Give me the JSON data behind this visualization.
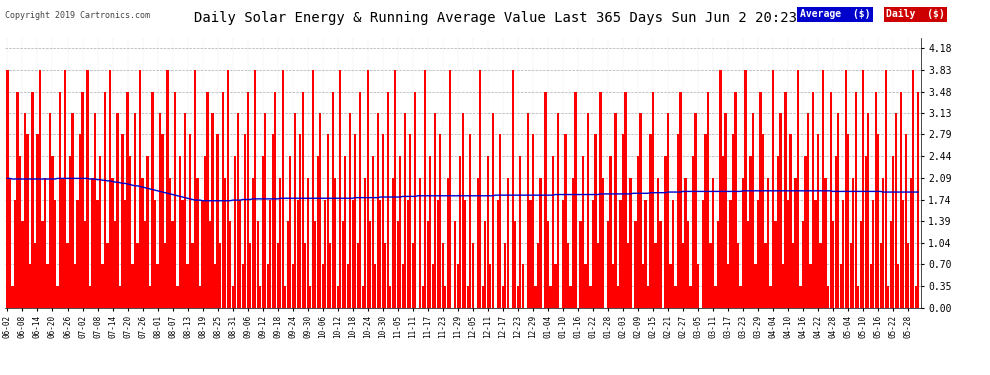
{
  "title": "Daily Solar Energy & Running Average Value Last 365 Days Sun Jun 2 20:23",
  "copyright": "Copyright 2019 Cartronics.com",
  "ylabel_right_ticks": [
    0.0,
    0.35,
    0.7,
    1.04,
    1.39,
    1.74,
    2.09,
    2.44,
    2.79,
    3.13,
    3.48,
    3.83,
    4.18
  ],
  "ylim": [
    0.0,
    4.35
  ],
  "bar_color": "#ff0000",
  "avg_color": "#0000cc",
  "bg_color": "#ffffff",
  "plot_bg_color": "#ffffff",
  "grid_color": "#999999",
  "title_color": "#000000",
  "title_fontsize": 11,
  "legend_avg_bg": "#0000cc",
  "legend_daily_bg": "#cc0000",
  "legend_text_color": "#ffffff",
  "num_bars": 365,
  "x_tick_labels": [
    "06-02",
    "06-08",
    "06-14",
    "06-20",
    "06-26",
    "07-02",
    "07-08",
    "07-14",
    "07-20",
    "07-26",
    "08-01",
    "08-07",
    "08-13",
    "08-19",
    "08-25",
    "08-31",
    "09-06",
    "09-12",
    "09-18",
    "09-24",
    "09-30",
    "10-06",
    "10-12",
    "10-18",
    "10-24",
    "10-30",
    "11-05",
    "11-11",
    "11-17",
    "11-23",
    "11-29",
    "12-05",
    "12-11",
    "12-17",
    "12-23",
    "12-29",
    "01-04",
    "01-10",
    "01-16",
    "01-22",
    "01-28",
    "02-03",
    "02-09",
    "02-15",
    "02-21",
    "02-27",
    "03-05",
    "03-11",
    "03-17",
    "03-23",
    "03-29",
    "04-04",
    "04-10",
    "04-16",
    "04-22",
    "04-28",
    "05-04",
    "05-10",
    "05-16",
    "05-22",
    "05-28"
  ],
  "avg_values": [
    2.08,
    2.08,
    2.07,
    2.07,
    2.07,
    2.07,
    2.07,
    2.07,
    2.07,
    2.07,
    2.07,
    2.07,
    2.07,
    2.07,
    2.07,
    2.07,
    2.07,
    2.07,
    2.07,
    2.07,
    2.08,
    2.08,
    2.08,
    2.08,
    2.08,
    2.08,
    2.08,
    2.08,
    2.08,
    2.08,
    2.08,
    2.08,
    2.08,
    2.07,
    2.07,
    2.07,
    2.06,
    2.06,
    2.05,
    2.05,
    2.04,
    2.04,
    2.03,
    2.02,
    2.02,
    2.01,
    2.0,
    2.0,
    1.99,
    1.98,
    1.97,
    1.96,
    1.96,
    1.95,
    1.94,
    1.93,
    1.92,
    1.91,
    1.9,
    1.89,
    1.88,
    1.87,
    1.86,
    1.85,
    1.84,
    1.83,
    1.82,
    1.81,
    1.8,
    1.79,
    1.78,
    1.77,
    1.76,
    1.75,
    1.74,
    1.73,
    1.73,
    1.73,
    1.72,
    1.72,
    1.72,
    1.72,
    1.72,
    1.72,
    1.72,
    1.72,
    1.72,
    1.72,
    1.72,
    1.72,
    1.73,
    1.73,
    1.73,
    1.73,
    1.74,
    1.74,
    1.74,
    1.74,
    1.75,
    1.75,
    1.75,
    1.75,
    1.75,
    1.75,
    1.75,
    1.75,
    1.75,
    1.75,
    1.75,
    1.76,
    1.76,
    1.76,
    1.76,
    1.76,
    1.76,
    1.76,
    1.76,
    1.76,
    1.76,
    1.76,
    1.76,
    1.76,
    1.76,
    1.76,
    1.76,
    1.76,
    1.76,
    1.76,
    1.76,
    1.76,
    1.76,
    1.76,
    1.76,
    1.76,
    1.76,
    1.76,
    1.76,
    1.76,
    1.76,
    1.77,
    1.77,
    1.77,
    1.77,
    1.77,
    1.77,
    1.77,
    1.77,
    1.77,
    1.77,
    1.78,
    1.78,
    1.78,
    1.78,
    1.78,
    1.78,
    1.78,
    1.78,
    1.78,
    1.79,
    1.79,
    1.79,
    1.79,
    1.79,
    1.79,
    1.8,
    1.8,
    1.8,
    1.8,
    1.8,
    1.8,
    1.8,
    1.8,
    1.8,
    1.8,
    1.8,
    1.8,
    1.8,
    1.8,
    1.8,
    1.8,
    1.8,
    1.8,
    1.8,
    1.8,
    1.8,
    1.8,
    1.8,
    1.8,
    1.8,
    1.8,
    1.8,
    1.8,
    1.8,
    1.8,
    1.8,
    1.81,
    1.81,
    1.81,
    1.81,
    1.81,
    1.81,
    1.81,
    1.81,
    1.81,
    1.81,
    1.81,
    1.81,
    1.81,
    1.81,
    1.81,
    1.81,
    1.81,
    1.81,
    1.81,
    1.81,
    1.81,
    1.81,
    1.81,
    1.81,
    1.82,
    1.82,
    1.82,
    1.82,
    1.82,
    1.82,
    1.82,
    1.82,
    1.82,
    1.82,
    1.82,
    1.82,
    1.82,
    1.82,
    1.82,
    1.82,
    1.82,
    1.82,
    1.83,
    1.83,
    1.83,
    1.83,
    1.83,
    1.83,
    1.83,
    1.83,
    1.83,
    1.83,
    1.83,
    1.83,
    1.83,
    1.84,
    1.84,
    1.84,
    1.84,
    1.84,
    1.84,
    1.84,
    1.85,
    1.85,
    1.85,
    1.85,
    1.85,
    1.85,
    1.85,
    1.86,
    1.86,
    1.86,
    1.86,
    1.86,
    1.86,
    1.87,
    1.87,
    1.87,
    1.87,
    1.87,
    1.87,
    1.87,
    1.87,
    1.87,
    1.87,
    1.87,
    1.87,
    1.87,
    1.87,
    1.87,
    1.87,
    1.87,
    1.87,
    1.87,
    1.87,
    1.87,
    1.87,
    1.87,
    1.87,
    1.88,
    1.88,
    1.88,
    1.88,
    1.88,
    1.88,
    1.88,
    1.88,
    1.88,
    1.88,
    1.88,
    1.88,
    1.88,
    1.88,
    1.88,
    1.88,
    1.88,
    1.88,
    1.88,
    1.88,
    1.88,
    1.88,
    1.88,
    1.88,
    1.88,
    1.88,
    1.88,
    1.88,
    1.88,
    1.88,
    1.88,
    1.88,
    1.88,
    1.88,
    1.88,
    1.88,
    1.87,
    1.87,
    1.87,
    1.87,
    1.87,
    1.87,
    1.87,
    1.87,
    1.87,
    1.87,
    1.87,
    1.87,
    1.87,
    1.87,
    1.87,
    1.87,
    1.87,
    1.87,
    1.87,
    1.87,
    1.86,
    1.86,
    1.86,
    1.86,
    1.86,
    1.86,
    1.86,
    1.86,
    1.86,
    1.86,
    1.86,
    1.86,
    1.86,
    1.86,
    1.86,
    1.86,
    1.86,
    1.86,
    1.86
  ],
  "daily_values": [
    3.83,
    2.09,
    0.35,
    1.74,
    3.48,
    2.44,
    1.39,
    3.13,
    2.79,
    0.7,
    3.48,
    1.04,
    2.79,
    3.83,
    1.39,
    2.09,
    0.7,
    3.13,
    2.44,
    1.74,
    0.35,
    3.48,
    2.09,
    3.83,
    1.04,
    2.44,
    3.13,
    0.7,
    1.74,
    2.79,
    3.48,
    1.39,
    3.83,
    0.35,
    2.09,
    3.13,
    1.74,
    2.44,
    0.7,
    3.48,
    1.04,
    3.83,
    2.09,
    1.39,
    3.13,
    0.35,
    2.79,
    1.74,
    3.48,
    2.44,
    0.7,
    3.13,
    1.04,
    3.83,
    2.09,
    1.39,
    2.44,
    0.35,
    3.48,
    1.74,
    0.7,
    3.13,
    2.79,
    1.04,
    3.83,
    2.09,
    1.39,
    3.48,
    0.35,
    2.44,
    1.74,
    3.13,
    0.7,
    2.79,
    1.04,
    3.83,
    2.09,
    0.35,
    1.74,
    2.44,
    3.48,
    1.39,
    3.13,
    0.7,
    2.79,
    1.04,
    3.48,
    2.09,
    3.83,
    1.39,
    0.35,
    2.44,
    3.13,
    1.74,
    0.7,
    2.79,
    3.48,
    1.04,
    2.09,
    3.83,
    1.39,
    0.35,
    2.44,
    3.13,
    0.7,
    1.74,
    2.79,
    3.48,
    1.04,
    2.09,
    3.83,
    0.35,
    1.39,
    2.44,
    0.7,
    3.13,
    1.74,
    2.79,
    3.48,
    1.04,
    2.09,
    0.35,
    3.83,
    1.39,
    2.44,
    3.13,
    0.7,
    1.74,
    2.79,
    1.04,
    3.48,
    2.09,
    0.35,
    3.83,
    1.39,
    2.44,
    0.7,
    3.13,
    1.74,
    2.79,
    1.04,
    3.48,
    0.35,
    2.09,
    3.83,
    1.39,
    2.44,
    0.7,
    3.13,
    1.74,
    2.79,
    1.04,
    3.48,
    0.35,
    2.09,
    3.83,
    1.39,
    2.44,
    0.7,
    3.13,
    1.74,
    2.79,
    1.04,
    3.48,
    0.0,
    2.09,
    0.35,
    3.83,
    1.39,
    2.44,
    0.7,
    3.13,
    1.74,
    2.79,
    1.04,
    0.35,
    2.09,
    3.83,
    0.0,
    1.39,
    0.7,
    2.44,
    3.13,
    1.74,
    0.35,
    2.79,
    1.04,
    0.0,
    2.09,
    3.83,
    0.35,
    1.39,
    2.44,
    0.7,
    3.13,
    0.0,
    1.74,
    2.79,
    0.35,
    1.04,
    2.09,
    0.0,
    3.83,
    1.39,
    0.35,
    2.44,
    0.7,
    0.0,
    3.13,
    1.74,
    2.79,
    0.35,
    1.04,
    2.09,
    0.0,
    3.48,
    1.39,
    0.35,
    2.44,
    0.7,
    3.13,
    0.0,
    1.74,
    2.79,
    1.04,
    0.35,
    2.09,
    3.48,
    0.0,
    1.39,
    2.44,
    0.7,
    3.13,
    0.35,
    1.74,
    2.79,
    1.04,
    3.48,
    2.09,
    0.0,
    1.39,
    2.44,
    0.7,
    3.13,
    0.35,
    1.74,
    2.79,
    3.48,
    1.04,
    2.09,
    0.0,
    1.39,
    2.44,
    3.13,
    0.7,
    1.74,
    0.35,
    2.79,
    3.48,
    1.04,
    2.09,
    1.39,
    0.0,
    2.44,
    3.13,
    0.7,
    1.74,
    0.35,
    2.79,
    3.48,
    1.04,
    2.09,
    1.39,
    0.35,
    2.44,
    3.13,
    0.7,
    0.0,
    1.74,
    2.79,
    3.48,
    1.04,
    2.09,
    0.35,
    1.39,
    3.83,
    2.44,
    3.13,
    0.7,
    1.74,
    2.79,
    3.48,
    1.04,
    0.35,
    2.09,
    3.83,
    1.39,
    2.44,
    3.13,
    0.7,
    1.74,
    3.48,
    2.79,
    1.04,
    2.09,
    0.35,
    3.83,
    1.39,
    2.44,
    3.13,
    0.7,
    3.48,
    1.74,
    2.79,
    1.04,
    2.09,
    3.83,
    0.35,
    1.39,
    2.44,
    3.13,
    0.7,
    3.48,
    1.74,
    2.79,
    1.04,
    3.83,
    2.09,
    0.35,
    3.48,
    1.39,
    2.44,
    3.13,
    0.7,
    1.74,
    3.83,
    2.79,
    1.04,
    2.09,
    3.48,
    0.35,
    1.39,
    3.83,
    2.44,
    3.13,
    0.7,
    1.74,
    3.48,
    2.79,
    1.04,
    2.09,
    3.83,
    0.35,
    1.39,
    2.44,
    3.13,
    0.7,
    3.48,
    1.74,
    2.79,
    1.04,
    2.09,
    3.83,
    0.35,
    3.48,
    1.39,
    2.44,
    3.13,
    1.74
  ]
}
